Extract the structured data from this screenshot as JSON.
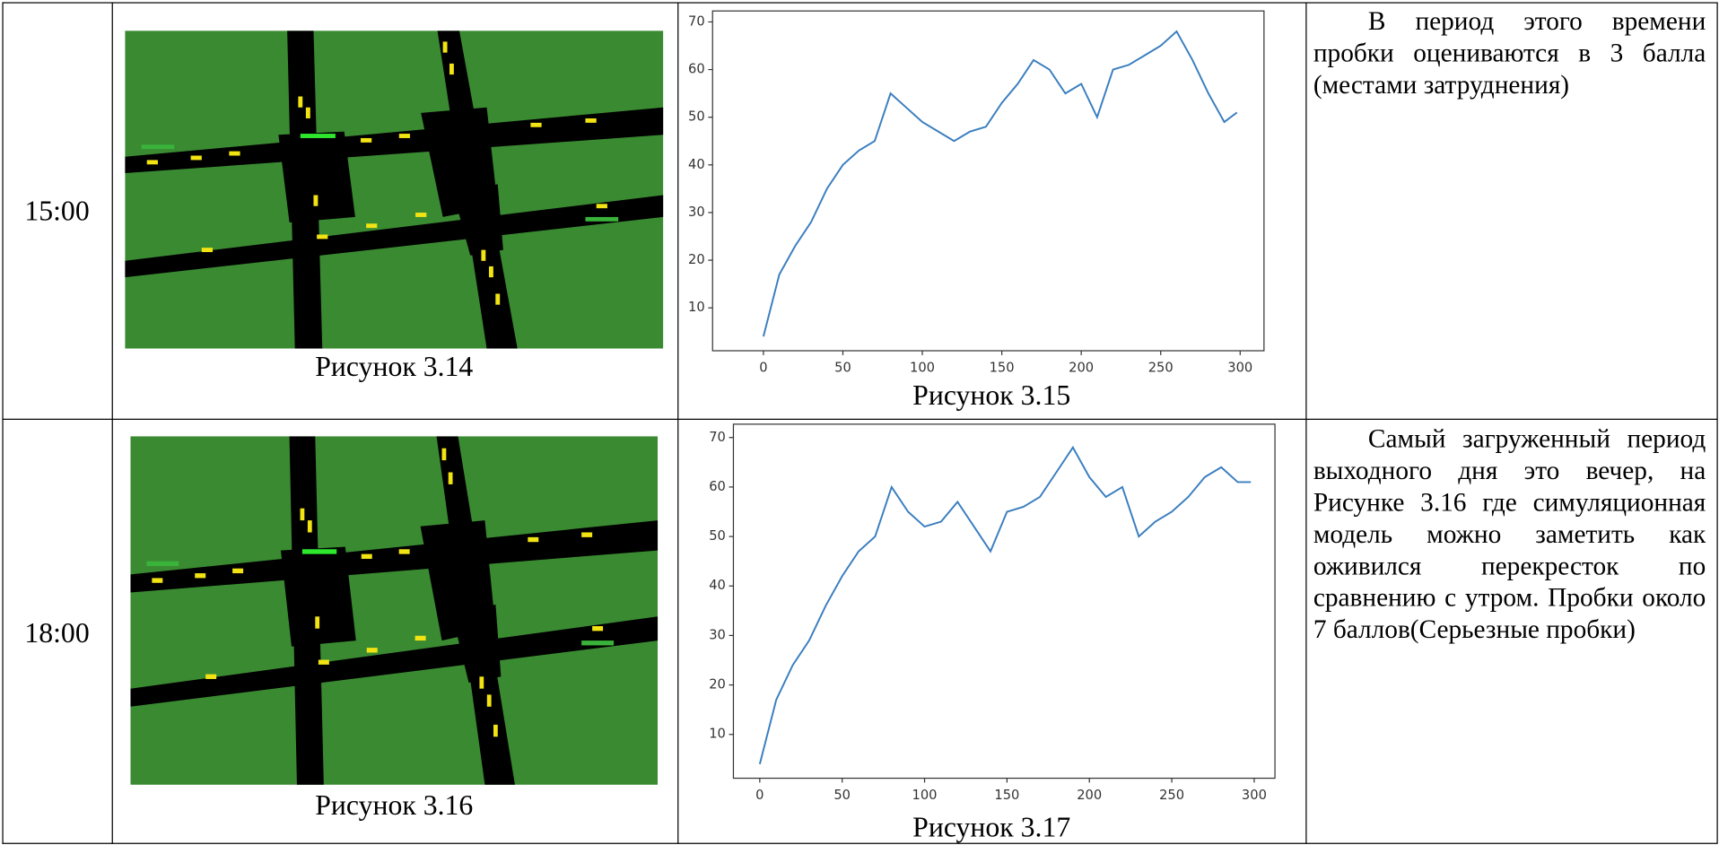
{
  "table": {
    "rows": [
      {
        "time": "15:00",
        "figure_caption": "Рисунок 3.14",
        "chart_caption": "Рисунок 3.15",
        "text": "В период этого времени пробки оцениваются в 3 балла (местами затруднения)"
      },
      {
        "time": "18:00",
        "figure_caption": "Рисунок 3.16",
        "chart_caption": "Рисунок 3.17",
        "text": "Самый загруженный период выходного дня это вечер, на Рисунке 3.16 где симуляционная модель можно заметить как оживился перекресток по сравнению с утром. Пробки около 7 баллов(Серьезные пробки)"
      }
    ]
  },
  "chart_data": [
    {
      "type": "line",
      "color": "#3a7ebf",
      "x": [
        0,
        10,
        20,
        30,
        40,
        50,
        60,
        70,
        80,
        90,
        100,
        110,
        120,
        130,
        140,
        150,
        160,
        170,
        180,
        190,
        200,
        210,
        220,
        230,
        240,
        250,
        260,
        270,
        280,
        290,
        298
      ],
      "values": [
        4,
        17,
        23,
        28,
        35,
        40,
        43,
        45,
        55,
        52,
        49,
        47,
        45,
        47,
        48,
        53,
        57,
        62,
        60,
        55,
        57,
        50,
        60,
        61,
        63,
        65,
        68,
        62,
        55,
        49,
        51
      ],
      "xlim": [
        -32,
        315
      ],
      "ylim": [
        1,
        72.3
      ],
      "xticks": [
        0,
        50,
        100,
        150,
        200,
        250,
        300
      ],
      "yticks": [
        10,
        20,
        30,
        40,
        50,
        60,
        70
      ]
    },
    {
      "type": "line",
      "color": "#3a7ebf",
      "x": [
        0,
        10,
        20,
        30,
        40,
        50,
        60,
        70,
        80,
        90,
        100,
        110,
        120,
        130,
        140,
        150,
        160,
        170,
        180,
        190,
        200,
        210,
        220,
        230,
        240,
        250,
        260,
        270,
        280,
        290,
        298
      ],
      "values": [
        4,
        17,
        24,
        29,
        36,
        42,
        47,
        50,
        60,
        55,
        52,
        53,
        57,
        52,
        47,
        55,
        56,
        58,
        63,
        68,
        62,
        58,
        60,
        50,
        53,
        55,
        58,
        62,
        64,
        61,
        61
      ],
      "xlim": [
        -16,
        312.6
      ],
      "ylim": [
        1.15,
        72.7
      ],
      "xticks": [
        0,
        50,
        100,
        150,
        200,
        250,
        300
      ],
      "yticks": [
        10,
        20,
        30,
        40,
        50,
        60,
        70
      ]
    }
  ]
}
